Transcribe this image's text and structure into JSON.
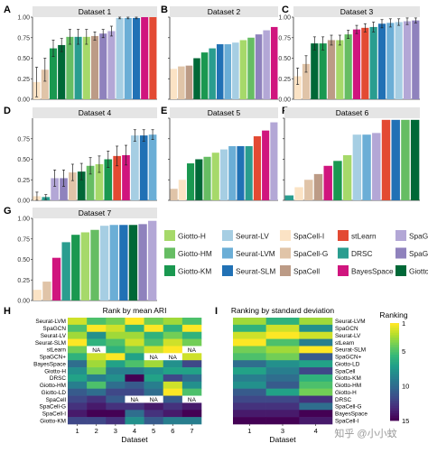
{
  "colors": {
    "Giotto-H": "#a6d96a",
    "Giotto-HM": "#66bd63",
    "Giotto-KM": "#1a9850",
    "Giotto-LD": "#006837",
    "Seurat-LV": "#a6cee3",
    "Seurat-LVM": "#6baed6",
    "Seurat-SLM": "#2171b5",
    "SpaCell-I": "#fbe3c5",
    "SpaCell-G": "#e0c4a8",
    "SpaCell": "#bc9b86",
    "stLearn": "#e34a33",
    "DRSC": "#2a9d8f",
    "BayesSpace": "#d0157e",
    "SpaGCN": "#b3a7d6",
    "SpaGCN+": "#8f82bd"
  },
  "legend": {
    "items": [
      "Giotto-H",
      "Seurat-LV",
      "SpaCell-I",
      "stLearn",
      "SpaGCN",
      "Giotto-HM",
      "Seurat-LVM",
      "SpaCell-G",
      "DRSC",
      "SpaGCN+",
      "Giotto-KM",
      "Seurat-SLM",
      "SpaCell",
      "BayesSpace",
      "Giotto-LD"
    ]
  },
  "chart_data": [
    {
      "type": "bar",
      "panel": "A",
      "title": "Dataset 1",
      "ylim": [
        0,
        1
      ],
      "yticks": [
        "0.00",
        "0.25",
        "0.50",
        "0.75",
        "1.00"
      ],
      "categories": [
        "SpaCell-I",
        "SpaCell-G",
        "Giotto-KM",
        "Giotto-LD",
        "Giotto-HM",
        "DRSC",
        "Giotto-H",
        "SpaCell",
        "SpaGCN+",
        "SpaGCN",
        "Seurat-LV",
        "Seurat-LVM",
        "Seurat-SLM",
        "BayesSpace",
        "stLearn"
      ],
      "values": [
        0.21,
        0.36,
        0.62,
        0.66,
        0.76,
        0.76,
        0.76,
        0.77,
        0.8,
        0.83,
        0.99,
        0.99,
        0.99,
        1.0,
        1.0
      ],
      "errors": [
        0.18,
        0.14,
        0.1,
        0.08,
        0.09,
        0.09,
        0.09,
        0.05,
        0.05,
        0.06,
        0.01,
        0.01,
        0.01,
        0.0,
        0.0
      ]
    },
    {
      "type": "bar",
      "panel": "B",
      "title": "Dataset 2",
      "ylim": [
        0,
        1
      ],
      "categories": [
        "SpaCell-I",
        "SpaCell-G",
        "SpaCell",
        "Giotto-LD",
        "Giotto-KM",
        "DRSC",
        "Seurat-SLM",
        "Seurat-LVM",
        "Seurat-LV",
        "Giotto-H",
        "Giotto-HM",
        "SpaGCN+",
        "SpaGCN",
        "BayesSpace"
      ],
      "values": [
        0.37,
        0.4,
        0.41,
        0.5,
        0.57,
        0.62,
        0.67,
        0.67,
        0.69,
        0.72,
        0.75,
        0.79,
        0.84,
        0.88
      ]
    },
    {
      "type": "bar",
      "panel": "C",
      "title": "Dataset 3",
      "ylim": [
        0,
        1
      ],
      "categories": [
        "SpaCell-I",
        "SpaCell-G",
        "Giotto-LD",
        "Giotto-KM",
        "SpaCell",
        "Giotto-H",
        "Giotto-HM",
        "BayesSpace",
        "stLearn",
        "DRSC",
        "Seurat-SLM",
        "Seurat-LVM",
        "Seurat-LV",
        "SpaGCN",
        "SpaGCN+"
      ],
      "values": [
        0.28,
        0.43,
        0.68,
        0.68,
        0.72,
        0.72,
        0.79,
        0.85,
        0.87,
        0.88,
        0.92,
        0.93,
        0.94,
        0.95,
        0.96
      ],
      "errors": [
        0.1,
        0.1,
        0.08,
        0.08,
        0.06,
        0.06,
        0.05,
        0.05,
        0.05,
        0.06,
        0.05,
        0.05,
        0.04,
        0.04,
        0.03
      ]
    },
    {
      "type": "bar",
      "panel": "D",
      "title": "Dataset 4",
      "ylim": [
        0,
        1
      ],
      "yticks": [
        "0.00",
        "0.25",
        "0.50",
        "0.75"
      ],
      "categories": [
        "SpaCell-I",
        "DRSC",
        "SpaGCN",
        "SpaGCN+",
        "SpaCell-G",
        "Giotto-LD",
        "Giotto-HM",
        "Giotto-H",
        "Giotto-KM",
        "stLearn",
        "BayesSpace",
        "Seurat-LV",
        "Seurat-SLM",
        "Seurat-LVM"
      ],
      "values": [
        0.05,
        0.04,
        0.27,
        0.27,
        0.34,
        0.35,
        0.42,
        0.44,
        0.5,
        0.54,
        0.55,
        0.79,
        0.79,
        0.8
      ],
      "errors": [
        0.05,
        0.03,
        0.1,
        0.1,
        0.1,
        0.1,
        0.1,
        0.1,
        0.1,
        0.12,
        0.12,
        0.07,
        0.07,
        0.06
      ]
    },
    {
      "type": "bar",
      "panel": "E",
      "title": "Dataset 5",
      "ylim": [
        0,
        1
      ],
      "categories": [
        "SpaCell-G",
        "SpaCell-I",
        "Giotto-KM",
        "Giotto-LD",
        "Giotto-HM",
        "Giotto-H",
        "Seurat-LV",
        "Seurat-LVM",
        "Seurat-SLM",
        "DRSC",
        "stLearn",
        "BayesSpace",
        "SpaGCN"
      ],
      "values": [
        0.14,
        0.25,
        0.45,
        0.5,
        0.53,
        0.58,
        0.62,
        0.66,
        0.66,
        0.66,
        0.78,
        0.85,
        0.95
      ]
    },
    {
      "type": "bar",
      "panel": "F",
      "title": "Dataset 6",
      "ylim": [
        0,
        1
      ],
      "categories": [
        "DRSC",
        "SpaCell-I",
        "SpaCell-G",
        "SpaCell",
        "BayesSpace",
        "Giotto-KM",
        "Giotto-H",
        "Seurat-LV",
        "Seurat-LVM",
        "SpaGCN",
        "stLearn",
        "Seurat-SLM",
        "Giotto-HM",
        "Giotto-LD"
      ],
      "values": [
        0.06,
        0.16,
        0.25,
        0.32,
        0.42,
        0.48,
        0.55,
        0.8,
        0.8,
        0.82,
        0.98,
        0.98,
        0.98,
        0.98
      ]
    },
    {
      "type": "bar",
      "panel": "G",
      "title": "Dataset 7",
      "ylim": [
        0,
        1
      ],
      "categories": [
        "SpaCell-I",
        "SpaCell-G",
        "BayesSpace",
        "DRSC",
        "Giotto-KM",
        "Giotto-H",
        "Giotto-HM",
        "Seurat-LV",
        "Seurat-LVM",
        "Seurat-SLM",
        "Giotto-LD",
        "SpaGCN+",
        "SpaGCN"
      ],
      "values": [
        0.13,
        0.23,
        0.52,
        0.71,
        0.8,
        0.83,
        0.86,
        0.91,
        0.92,
        0.92,
        0.92,
        0.93,
        0.97
      ]
    },
    {
      "type": "heatmap",
      "panel": "H",
      "title": "Rank by mean ARI",
      "xlabel": "Dataset",
      "columns": [
        "1",
        "2",
        "3",
        "4",
        "5",
        "6",
        "7"
      ],
      "rows": [
        "Seurat-LVM",
        "SpaGCN",
        "Seurat-LV",
        "Seurat-SLM",
        "stLearn",
        "SpaGCN+",
        "BayesSpace",
        "Giotto-H",
        "DRSC",
        "Giotto-HM",
        "Giotto-LD",
        "SpaCell",
        "SpaCell-G",
        "SpaCell-I",
        "Giotto-KM"
      ],
      "values": [
        [
          2,
          5,
          4,
          1,
          4,
          3,
          5
        ],
        [
          5,
          1,
          2,
          6,
          1,
          6,
          1
        ],
        [
          3,
          8,
          3,
          3,
          6,
          4,
          6
        ],
        [
          1,
          6,
          5,
          2,
          5,
          2,
          4
        ],
        [
          4,
          null,
          6,
          4,
          2,
          1,
          null
        ],
        [
          6,
          2,
          1,
          7,
          null,
          null,
          2
        ],
        [
          10,
          3,
          7,
          5,
          3,
          8,
          12
        ],
        [
          8,
          4,
          9,
          9,
          8,
          7,
          7
        ],
        [
          7,
          9,
          8,
          15,
          7,
          12,
          10
        ],
        [
          9,
          5,
          10,
          11,
          9,
          2,
          8
        ],
        [
          11,
          10,
          12,
          12,
          10,
          1,
          5
        ],
        [
          12,
          13,
          11,
          null,
          null,
          11,
          null
        ],
        [
          13,
          14,
          13,
          13,
          14,
          13,
          14
        ],
        [
          14,
          15,
          15,
          10,
          13,
          14,
          15
        ],
        [
          12,
          12,
          13,
          8,
          11,
          9,
          9
        ]
      ],
      "na_label": "NA"
    },
    {
      "type": "heatmap",
      "panel": "I",
      "title": "Ranking by standard deviation",
      "xlabel": "Dataset",
      "columns": [
        "1",
        "3",
        "4"
      ],
      "rows": [
        "Seurat-LVM",
        "SpaGCN",
        "Seurat-LV",
        "stLearn",
        "Seurat-SLM",
        "SpaGCN+",
        "Giotto-LD",
        "SpaCell",
        "Giotto-KM",
        "Giotto-HM",
        "Giotto-H",
        "DRSC",
        "SpaCell-G",
        "BayesSpace",
        "SpaCell-I"
      ],
      "values": [
        [
          3,
          6,
          3
        ],
        [
          6,
          2,
          8
        ],
        [
          2,
          1,
          2
        ],
        [
          1,
          5,
          9
        ],
        [
          4,
          3,
          1
        ],
        [
          5,
          4,
          11
        ],
        [
          10,
          8,
          7
        ],
        [
          7,
          9,
          12
        ],
        [
          9,
          10,
          6
        ],
        [
          8,
          11,
          5
        ],
        [
          11,
          7,
          4
        ],
        [
          12,
          12,
          13
        ],
        [
          13,
          13,
          10
        ],
        [
          14,
          14,
          15
        ],
        [
          15,
          15,
          14
        ]
      ],
      "legend_title": "Ranking",
      "legend_ticks": [
        "1",
        "5",
        "10",
        "15"
      ]
    }
  ],
  "panel_labels": {
    "A": "A",
    "B": "B",
    "C": "C",
    "D": "D",
    "E": "E",
    "F": "F",
    "G": "G",
    "H": "H",
    "I": "I"
  },
  "watermark": "知乎 @小小蚊"
}
